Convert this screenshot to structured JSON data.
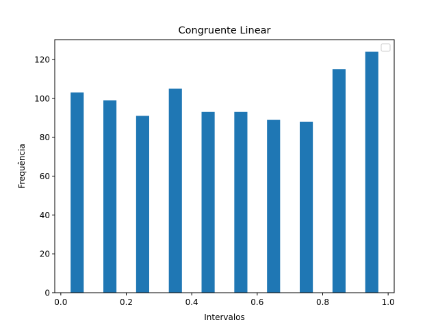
{
  "chart_data": {
    "type": "bar",
    "title": "Congruente Linear",
    "xlabel": "Intervalos",
    "ylabel": "Frequência",
    "xlim": [
      -0.0185,
      1.0185
    ],
    "ylim": [
      0,
      130.2
    ],
    "x_ticks": [
      0.0,
      0.2,
      0.4,
      0.6,
      0.8,
      1.0
    ],
    "x_tick_labels": [
      "0.0",
      "0.2",
      "0.4",
      "0.6",
      "0.8",
      "1.0"
    ],
    "y_ticks": [
      0,
      20,
      40,
      60,
      80,
      100,
      120
    ],
    "y_tick_labels": [
      "0",
      "20",
      "40",
      "60",
      "80",
      "100",
      "120"
    ],
    "bins": [
      {
        "x0": 0.03,
        "x1": 0.07,
        "value": 103
      },
      {
        "x0": 0.13,
        "x1": 0.17,
        "value": 99
      },
      {
        "x0": 0.23,
        "x1": 0.27,
        "value": 91
      },
      {
        "x0": 0.33,
        "x1": 0.37,
        "value": 105
      },
      {
        "x0": 0.43,
        "x1": 0.47,
        "value": 93
      },
      {
        "x0": 0.53,
        "x1": 0.57,
        "value": 93
      },
      {
        "x0": 0.63,
        "x1": 0.67,
        "value": 89
      },
      {
        "x0": 0.73,
        "x1": 0.77,
        "value": 88
      },
      {
        "x0": 0.83,
        "x1": 0.87,
        "value": 115
      },
      {
        "x0": 0.93,
        "x1": 0.97,
        "value": 124
      }
    ],
    "bar_color": "#1f77b4",
    "legend": {
      "placement": "top-right",
      "entries": []
    },
    "grid": false
  }
}
